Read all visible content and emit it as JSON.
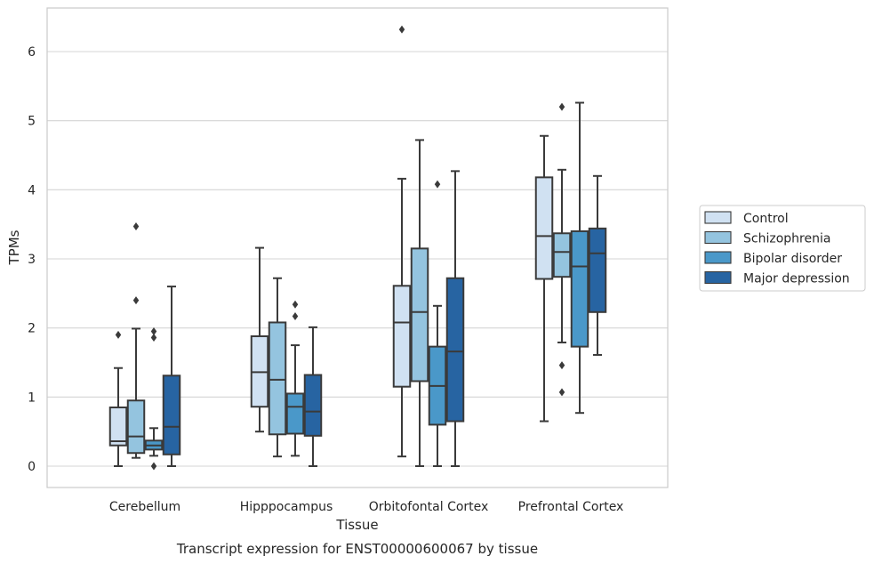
{
  "chart_data": {
    "type": "box",
    "caption": "Transcript expression for ENST00000600067 by tissue",
    "xlabel": "Tissue",
    "ylabel": "TPMs",
    "ylim": [
      -0.3,
      6.6
    ],
    "yticks": [
      0,
      1,
      2,
      3,
      4,
      5,
      6
    ],
    "grid": "horizontal",
    "legend_placement": "right",
    "categories": [
      "Cerebellum",
      "Hipppocampus",
      "Orbitofontal Cortex",
      "Prefrontal Cortex"
    ],
    "series": [
      {
        "name": "Control",
        "color": "#d0e1f2",
        "boxes": [
          {
            "whislo": 0.0,
            "q1": 0.3,
            "med": 0.36,
            "q3": 0.85,
            "whishi": 1.42,
            "fliers": [
              1.9
            ]
          },
          {
            "whislo": 0.5,
            "q1": 0.86,
            "med": 1.36,
            "q3": 1.88,
            "whishi": 3.16,
            "fliers": []
          },
          {
            "whislo": 0.14,
            "q1": 1.15,
            "med": 2.08,
            "q3": 2.61,
            "whishi": 4.16,
            "fliers": [
              6.32
            ]
          },
          {
            "whislo": 0.65,
            "q1": 2.71,
            "med": 3.33,
            "q3": 4.18,
            "whishi": 4.78,
            "fliers": []
          }
        ]
      },
      {
        "name": "Schizophrenia",
        "color": "#94c4df",
        "boxes": [
          {
            "whislo": 0.12,
            "q1": 0.19,
            "med": 0.43,
            "q3": 0.95,
            "whishi": 1.99,
            "fliers": [
              2.4,
              3.47
            ]
          },
          {
            "whislo": 0.14,
            "q1": 0.46,
            "med": 1.25,
            "q3": 2.08,
            "whishi": 2.72,
            "fliers": []
          },
          {
            "whislo": 0.0,
            "q1": 1.23,
            "med": 2.23,
            "q3": 3.15,
            "whishi": 4.72,
            "fliers": []
          },
          {
            "whislo": 1.79,
            "q1": 2.74,
            "med": 3.1,
            "q3": 3.37,
            "whishi": 4.29,
            "fliers": [
              1.07,
              1.46,
              5.2
            ]
          }
        ]
      },
      {
        "name": "Bipolar disorder",
        "color": "#4a98c9",
        "boxes": [
          {
            "whislo": 0.15,
            "q1": 0.24,
            "med": 0.3,
            "q3": 0.37,
            "whishi": 0.55,
            "fliers": [
              0.0,
              1.86,
              1.95
            ]
          },
          {
            "whislo": 0.15,
            "q1": 0.47,
            "med": 0.86,
            "q3": 1.05,
            "whishi": 1.75,
            "fliers": [
              2.17,
              2.34
            ]
          },
          {
            "whislo": 0.0,
            "q1": 0.6,
            "med": 1.16,
            "q3": 1.73,
            "whishi": 2.32,
            "fliers": [
              4.08
            ]
          },
          {
            "whislo": 0.77,
            "q1": 1.73,
            "med": 2.89,
            "q3": 3.4,
            "whishi": 5.26,
            "fliers": []
          }
        ]
      },
      {
        "name": "Major depression",
        "color": "#2764a2",
        "boxes": [
          {
            "whislo": 0.0,
            "q1": 0.17,
            "med": 0.57,
            "q3": 1.31,
            "whishi": 2.6,
            "fliers": []
          },
          {
            "whislo": 0.0,
            "q1": 0.44,
            "med": 0.79,
            "q3": 1.32,
            "whishi": 2.01,
            "fliers": []
          },
          {
            "whislo": 0.0,
            "q1": 0.65,
            "med": 1.66,
            "q3": 2.72,
            "whishi": 4.27,
            "fliers": []
          },
          {
            "whislo": 1.61,
            "q1": 2.23,
            "med": 3.08,
            "q3": 3.44,
            "whishi": 4.2,
            "fliers": []
          }
        ]
      }
    ]
  }
}
